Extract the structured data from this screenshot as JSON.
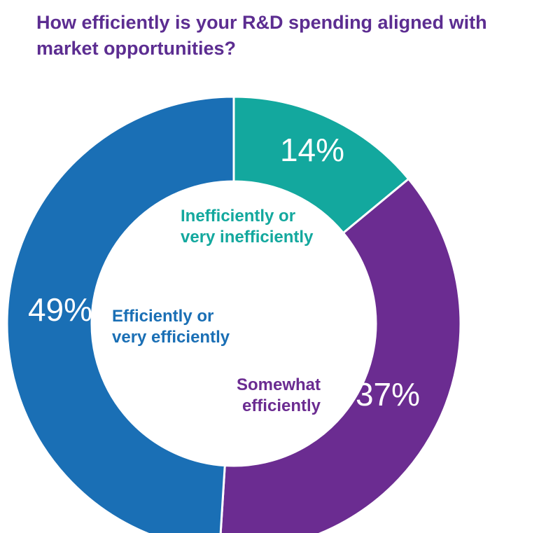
{
  "chart_data": {
    "type": "pie",
    "variant": "donut",
    "title": "How efficiently is your R&D spending aligned with market opportunities?",
    "slices": [
      {
        "label": "Inefficiently or very inefficiently",
        "label_lines": [
          "Inefficiently or",
          "very inefficiently"
        ],
        "value": 14,
        "value_label": "14%",
        "color": "#13a89e"
      },
      {
        "label": "Somewhat efficiently",
        "label_lines": [
          "Somewhat",
          "efficiently"
        ],
        "value": 37,
        "value_label": "37%",
        "color": "#6b2c91"
      },
      {
        "label": "Efficiently or very efficiently",
        "label_lines": [
          "Efficiently or",
          "very efficiently"
        ],
        "value": 49,
        "value_label": "49%",
        "color": "#1a6fb5"
      }
    ]
  }
}
